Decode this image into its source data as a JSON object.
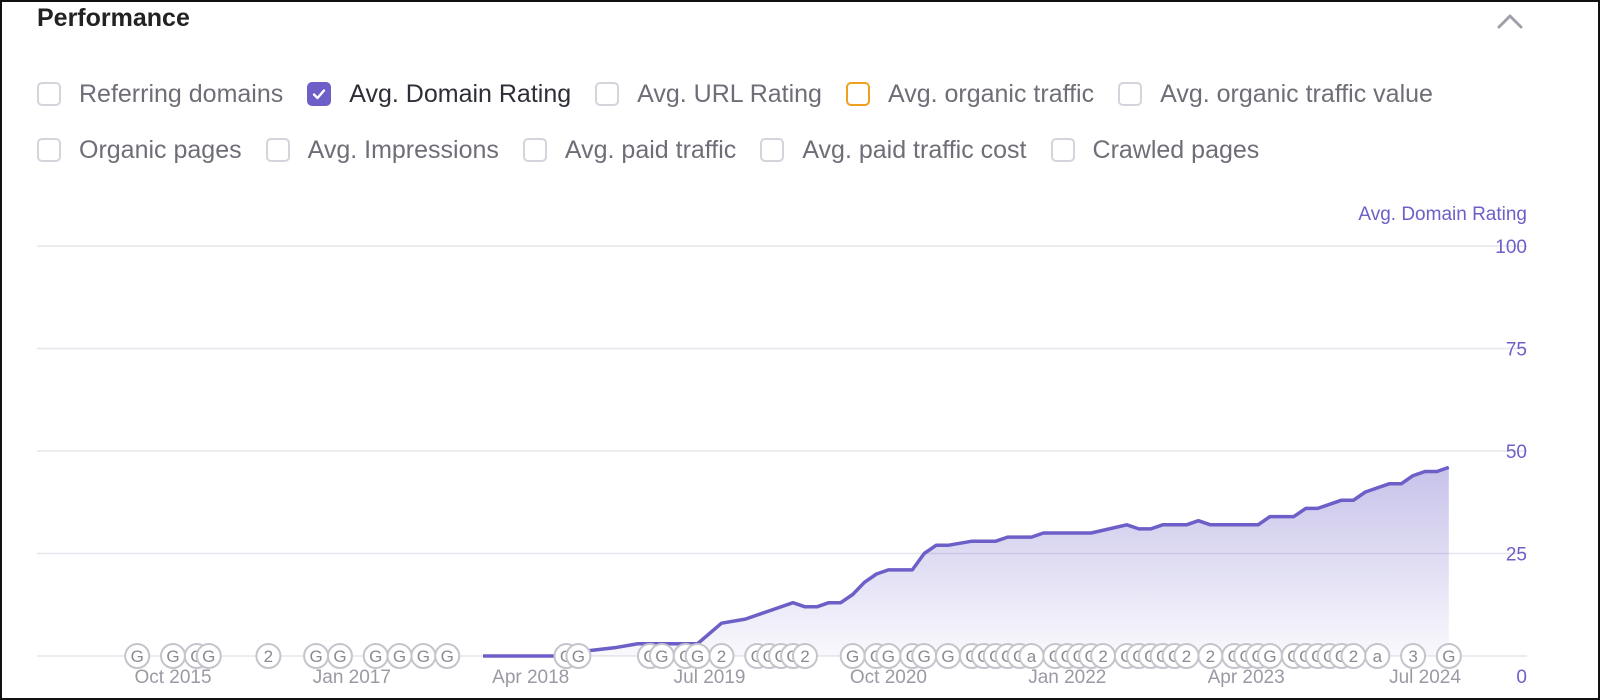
{
  "panel": {
    "title": "Performance"
  },
  "icons": {
    "collapse": "chevron-up-icon",
    "check": "check-icon"
  },
  "colors": {
    "accent": "#6c5fc7",
    "orange_outline": "#f0a020",
    "grid": "#e6e6ec"
  },
  "checkboxes": [
    [
      {
        "label": "Referring domains",
        "checked": false
      },
      {
        "label": "Avg. Domain Rating",
        "checked": true
      },
      {
        "label": "Avg. URL Rating",
        "checked": false
      },
      {
        "label": "Avg. organic traffic",
        "checked": false,
        "outline": "orange"
      },
      {
        "label": "Avg. organic traffic value",
        "checked": false
      }
    ],
    [
      {
        "label": "Organic pages",
        "checked": false
      },
      {
        "label": "Avg. Impressions",
        "checked": false
      },
      {
        "label": "Avg. paid traffic",
        "checked": false
      },
      {
        "label": "Avg. paid traffic cost",
        "checked": false
      },
      {
        "label": "Crawled pages",
        "checked": false
      }
    ]
  ],
  "chart_data": {
    "type": "area",
    "series": [
      {
        "name": "Avg. Domain Rating",
        "points": [
          [
            "2017-12",
            0
          ],
          [
            "2018-06",
            0
          ],
          [
            "2018-08",
            1
          ],
          [
            "2018-11",
            2
          ],
          [
            "2019-01",
            3
          ],
          [
            "2019-06",
            3
          ],
          [
            "2019-08",
            8
          ],
          [
            "2019-10",
            9
          ],
          [
            "2019-12",
            11
          ],
          [
            "2020-02",
            13
          ],
          [
            "2020-03",
            12
          ],
          [
            "2020-04",
            12
          ],
          [
            "2020-05",
            13
          ],
          [
            "2020-06",
            13
          ],
          [
            "2020-07",
            15
          ],
          [
            "2020-08",
            18
          ],
          [
            "2020-09",
            20
          ],
          [
            "2020-10",
            21
          ],
          [
            "2020-12",
            21
          ],
          [
            "2021-01",
            25
          ],
          [
            "2021-02",
            27
          ],
          [
            "2021-03",
            27
          ],
          [
            "2021-05",
            28
          ],
          [
            "2021-07",
            28
          ],
          [
            "2021-08",
            29
          ],
          [
            "2021-10",
            29
          ],
          [
            "2021-11",
            30
          ],
          [
            "2022-03",
            30
          ],
          [
            "2022-06",
            32
          ],
          [
            "2022-07",
            31
          ],
          [
            "2022-08",
            31
          ],
          [
            "2022-09",
            32
          ],
          [
            "2022-11",
            32
          ],
          [
            "2022-12",
            33
          ],
          [
            "2023-01",
            32
          ],
          [
            "2023-05",
            32
          ],
          [
            "2023-06",
            34
          ],
          [
            "2023-08",
            34
          ],
          [
            "2023-09",
            36
          ],
          [
            "2023-10",
            36
          ],
          [
            "2023-11",
            37
          ],
          [
            "2023-12",
            38
          ],
          [
            "2024-01",
            38
          ],
          [
            "2024-02",
            40
          ],
          [
            "2024-03",
            41
          ],
          [
            "2024-04",
            42
          ],
          [
            "2024-05",
            42
          ],
          [
            "2024-06",
            44
          ],
          [
            "2024-07",
            45
          ],
          [
            "2024-08",
            45
          ],
          [
            "2024-09",
            46
          ]
        ]
      }
    ],
    "y_axis_label": "Avg. Domain Rating",
    "y_ticks": [
      "100",
      "75",
      "50",
      "25",
      "0"
    ],
    "ylim": [
      0,
      100
    ],
    "x_ticks": [
      "Oct 2015",
      "Jan 2017",
      "Apr 2018",
      "Jul 2019",
      "Oct 2020",
      "Jan 2022",
      "Apr 2023",
      "Jul 2024"
    ],
    "x_tick_values": [
      "2015-10",
      "2017-01",
      "2018-04",
      "2019-07",
      "2020-10",
      "2022-01",
      "2023-04",
      "2024-07"
    ],
    "grid": true,
    "annotations": [
      [
        "2015-07",
        "G"
      ],
      [
        "2015-10",
        "G"
      ],
      [
        "2015-12",
        "G"
      ],
      [
        "2016-01",
        "G"
      ],
      [
        "2016-06",
        "2"
      ],
      [
        "2016-10",
        "G"
      ],
      [
        "2016-12",
        "G"
      ],
      [
        "2017-03",
        "G"
      ],
      [
        "2017-05",
        "G"
      ],
      [
        "2017-07",
        "G"
      ],
      [
        "2017-09",
        "G"
      ],
      [
        "2018-07",
        "G"
      ],
      [
        "2018-08",
        "G"
      ],
      [
        "2019-02",
        "G"
      ],
      [
        "2019-03",
        "G"
      ],
      [
        "2019-05",
        "G"
      ],
      [
        "2019-06",
        "G"
      ],
      [
        "2019-08",
        "2"
      ],
      [
        "2019-11",
        "G"
      ],
      [
        "2019-12",
        "G"
      ],
      [
        "2020-01",
        "G"
      ],
      [
        "2020-02",
        "G"
      ],
      [
        "2020-03",
        "2"
      ],
      [
        "2020-07",
        "G"
      ],
      [
        "2020-09",
        "G"
      ],
      [
        "2020-10",
        "G"
      ],
      [
        "2020-12",
        "G"
      ],
      [
        "2021-01",
        "G"
      ],
      [
        "2021-03",
        "G"
      ],
      [
        "2021-05",
        "G"
      ],
      [
        "2021-06",
        "G"
      ],
      [
        "2021-07",
        "G"
      ],
      [
        "2021-08",
        "G"
      ],
      [
        "2021-09",
        "G"
      ],
      [
        "2021-10",
        "a"
      ],
      [
        "2021-12",
        "G"
      ],
      [
        "2022-01",
        "G"
      ],
      [
        "2022-02",
        "G"
      ],
      [
        "2022-03",
        "G"
      ],
      [
        "2022-04",
        "2"
      ],
      [
        "2022-06",
        "G"
      ],
      [
        "2022-07",
        "G"
      ],
      [
        "2022-08",
        "G"
      ],
      [
        "2022-09",
        "G"
      ],
      [
        "2022-10",
        "G"
      ],
      [
        "2022-11",
        "2"
      ],
      [
        "2023-01",
        "2"
      ],
      [
        "2023-03",
        "G"
      ],
      [
        "2023-04",
        "G"
      ],
      [
        "2023-05",
        "G"
      ],
      [
        "2023-06",
        "G"
      ],
      [
        "2023-08",
        "G"
      ],
      [
        "2023-09",
        "G"
      ],
      [
        "2023-10",
        "G"
      ],
      [
        "2023-11",
        "G"
      ],
      [
        "2023-12",
        "G"
      ],
      [
        "2024-01",
        "2"
      ],
      [
        "2024-03",
        "a"
      ],
      [
        "2024-06",
        "3"
      ],
      [
        "2024-09",
        "G"
      ]
    ]
  }
}
